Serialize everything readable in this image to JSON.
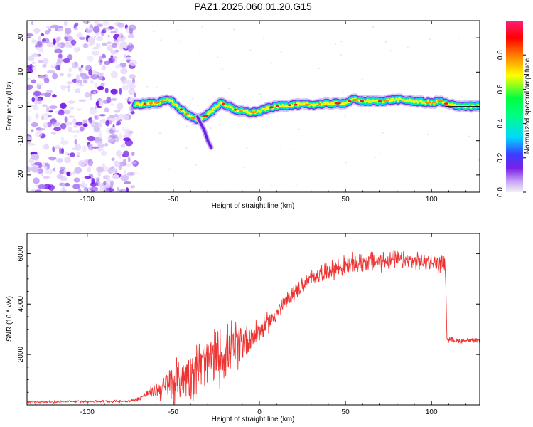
{
  "title": "PAZ1.2025.060.01.20.G15",
  "chart_data": [
    {
      "type": "heatmap",
      "title": "PAZ1.2025.060.01.20.G15",
      "xlabel": "Height of straight line (km)",
      "ylabel": "Frequency (Hz)",
      "xlim": [
        -135,
        128
      ],
      "ylim": [
        -25,
        25
      ],
      "x_ticks": [
        -100,
        -50,
        0,
        50,
        100
      ],
      "y_ticks": [
        -20,
        -10,
        0,
        10,
        20
      ],
      "colorbar": {
        "label": "Normalized spectral amplitude",
        "range": [
          0,
          1
        ],
        "ticks": [
          0.0,
          0.2,
          0.4,
          0.6,
          0.8
        ],
        "colors": [
          "#f2f2f2",
          "#c9a8f7",
          "#7b20e6",
          "#3c3cff",
          "#00d8ff",
          "#00ff40",
          "#ffff00",
          "#ff7a00",
          "#ff0000",
          "#ff1f7a"
        ]
      },
      "noise_region_x": [
        -135,
        -72
      ],
      "ridge": {
        "x": [
          -72,
          -60,
          -55,
          -52,
          -48,
          -44,
          -40,
          -36,
          -32,
          -28,
          -25,
          -22,
          -18,
          -14,
          -10,
          -5,
          0,
          5,
          10,
          20,
          30,
          40,
          50,
          55,
          60,
          70,
          80,
          90,
          100,
          105,
          110,
          120,
          128
        ],
        "frequency": [
          0.5,
          1,
          1.5,
          2,
          0,
          -1.5,
          -3,
          -4,
          -3,
          -1.5,
          0,
          1,
          0,
          -1,
          -1.5,
          -1.8,
          -1.5,
          -0.5,
          0,
          0.5,
          0.5,
          0.8,
          1,
          2,
          1.5,
          1.5,
          2,
          1.5,
          1,
          1.5,
          0.5,
          0,
          0
        ]
      },
      "branch": {
        "x": [
          -36,
          -34,
          -32,
          -30,
          -28
        ],
        "frequency": [
          -3,
          -5,
          -7,
          -10,
          -12
        ]
      }
    },
    {
      "type": "line",
      "xlabel": "Height of straight line (km)",
      "ylabel": "SNR (10 * v/v)",
      "xlim": [
        -135,
        128
      ],
      "ylim": [
        0,
        6800
      ],
      "x_ticks": [
        -100,
        -50,
        0,
        50,
        100
      ],
      "y_ticks": [
        2000,
        4000,
        6000
      ],
      "series": [
        {
          "color": "#ee3333",
          "envelope_x": [
            -135,
            -75,
            -70,
            -65,
            -60,
            -55,
            -50,
            -45,
            -40,
            -35,
            -30,
            -25,
            -20,
            -15,
            -10,
            -5,
            0,
            5,
            10,
            15,
            20,
            25,
            30,
            35,
            40,
            50,
            60,
            70,
            80,
            90,
            100,
            105,
            108,
            109,
            110,
            115,
            120,
            128
          ],
          "envelope_mean": [
            120,
            150,
            250,
            450,
            600,
            700,
            900,
            1100,
            1300,
            1500,
            1700,
            1900,
            2100,
            2300,
            2500,
            2700,
            2900,
            3250,
            3650,
            4050,
            4450,
            4750,
            5000,
            5200,
            5350,
            5500,
            5650,
            5700,
            5750,
            5700,
            5650,
            5600,
            5600,
            2600,
            2600,
            2550,
            2550,
            2550
          ],
          "envelope_spread": [
            60,
            60,
            120,
            200,
            350,
            800,
            1000,
            1100,
            1200,
            1300,
            1400,
            1400,
            1300,
            1200,
            1000,
            800,
            600,
            500,
            450,
            400,
            400,
            400,
            400,
            400,
            450,
            500,
            500,
            500,
            450,
            400,
            400,
            400,
            400,
            150,
            150,
            120,
            120,
            120
          ]
        }
      ]
    }
  ]
}
